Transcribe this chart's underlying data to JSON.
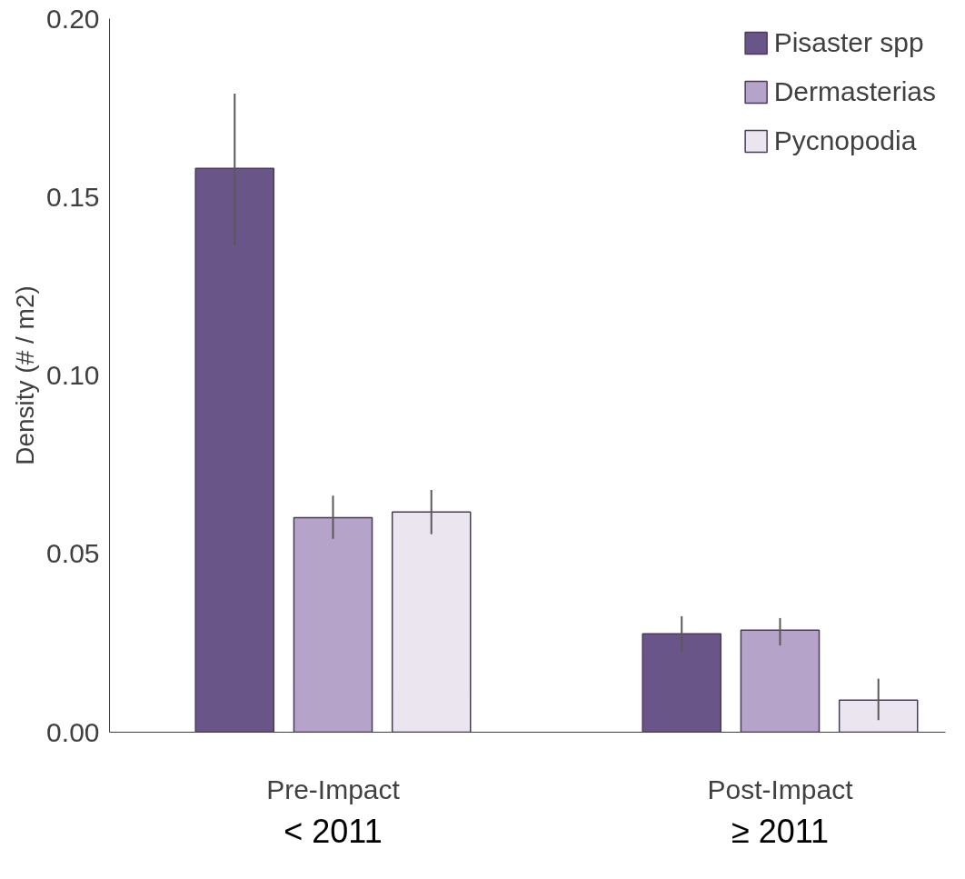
{
  "chart_data": {
    "type": "bar",
    "ylabel": "Density (# / m2)",
    "categories": [
      "Pre-Impact",
      "Post-Impact"
    ],
    "series": [
      {
        "name": "Pisaster spp",
        "color": "#6a5588",
        "values": [
          0.158,
          0.0276
        ],
        "errors": [
          [
            0.1365,
            0.179
          ],
          [
            0.0225,
            0.0325
          ]
        ]
      },
      {
        "name": "Dermasterias",
        "color": "#b5a3c9",
        "values": [
          0.0601,
          0.0286
        ],
        "errors": [
          [
            0.0542,
            0.0663
          ],
          [
            0.0243,
            0.032
          ]
        ]
      },
      {
        "name": "Pycnopodia",
        "color": "#ebe5f0",
        "values": [
          0.0617,
          0.009
        ],
        "errors": [
          [
            0.0555,
            0.0679
          ],
          [
            0.0034,
            0.015
          ]
        ]
      }
    ],
    "ylim": [
      0,
      0.2
    ],
    "yticks": [
      {
        "value": 0,
        "label": "0.00"
      },
      {
        "value": 0.05,
        "label": "0.05"
      },
      {
        "value": 0.1,
        "label": "0.10"
      },
      {
        "value": 0.15,
        "label": "0.15"
      },
      {
        "value": 0.2,
        "label": "0.20"
      }
    ],
    "grid": false,
    "legend": "top right",
    "annotations": [
      "< 2011",
      "≥ 2011"
    ]
  }
}
